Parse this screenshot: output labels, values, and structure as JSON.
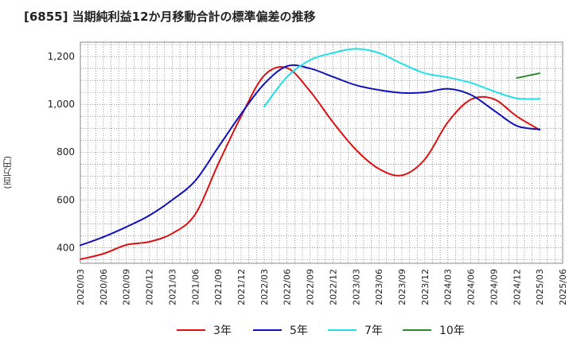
{
  "chart_data": {
    "type": "line",
    "title": "[6855]  当期純利益12か月移動合計の標準偏差の推移",
    "ylabel": "(百万円)",
    "xlabel": "",
    "ylim": [
      335,
      1260
    ],
    "yticks": [
      400,
      600,
      800,
      1000,
      1200
    ],
    "ytick_labels": [
      "400",
      "600",
      "800",
      "1,000",
      "1,200"
    ],
    "xticks": [
      "2020/03",
      "2020/06",
      "2020/09",
      "2020/12",
      "2021/03",
      "2021/06",
      "2021/09",
      "2021/12",
      "2022/03",
      "2022/06",
      "2022/09",
      "2022/12",
      "2023/03",
      "2023/06",
      "2023/09",
      "2023/12",
      "2024/03",
      "2024/06",
      "2024/09",
      "2024/12",
      "2025/03",
      "2025/06"
    ],
    "grid": true,
    "legend_position": "bottom",
    "series": [
      {
        "name": "3年",
        "color": "#dd1111",
        "points": [
          [
            "2020/03",
            352
          ],
          [
            "2020/06",
            375
          ],
          [
            "2020/09",
            412
          ],
          [
            "2020/12",
            425
          ],
          [
            "2021/03",
            460
          ],
          [
            "2021/06",
            540
          ],
          [
            "2021/09",
            750
          ],
          [
            "2021/12",
            950
          ],
          [
            "2022/03",
            1120
          ],
          [
            "2022/06",
            1152
          ],
          [
            "2022/09",
            1055
          ],
          [
            "2022/12",
            925
          ],
          [
            "2023/03",
            810
          ],
          [
            "2023/06",
            730
          ],
          [
            "2023/09",
            703
          ],
          [
            "2023/12",
            770
          ],
          [
            "2024/03",
            925
          ],
          [
            "2024/06",
            1020
          ],
          [
            "2024/09",
            1022
          ],
          [
            "2024/12",
            950
          ],
          [
            "2025/03",
            893
          ]
        ]
      },
      {
        "name": "5年",
        "color": "#1111bb",
        "points": [
          [
            "2020/03",
            410
          ],
          [
            "2020/06",
            445
          ],
          [
            "2020/09",
            487
          ],
          [
            "2020/12",
            535
          ],
          [
            "2021/03",
            600
          ],
          [
            "2021/06",
            680
          ],
          [
            "2021/09",
            820
          ],
          [
            "2021/12",
            960
          ],
          [
            "2022/03",
            1085
          ],
          [
            "2022/06",
            1160
          ],
          [
            "2022/09",
            1150
          ],
          [
            "2022/12",
            1115
          ],
          [
            "2023/03",
            1080
          ],
          [
            "2023/06",
            1060
          ],
          [
            "2023/09",
            1048
          ],
          [
            "2023/12",
            1050
          ],
          [
            "2024/03",
            1065
          ],
          [
            "2024/06",
            1040
          ],
          [
            "2024/09",
            975
          ],
          [
            "2024/12",
            910
          ],
          [
            "2025/03",
            895
          ]
        ]
      },
      {
        "name": "7年",
        "color": "#22e0e8",
        "points": [
          [
            "2022/03",
            990
          ],
          [
            "2022/06",
            1115
          ],
          [
            "2022/09",
            1185
          ],
          [
            "2022/12",
            1215
          ],
          [
            "2023/03",
            1232
          ],
          [
            "2023/06",
            1215
          ],
          [
            "2023/09",
            1170
          ],
          [
            "2023/12",
            1130
          ],
          [
            "2024/03",
            1113
          ],
          [
            "2024/06",
            1090
          ],
          [
            "2024/09",
            1055
          ],
          [
            "2024/12",
            1025
          ],
          [
            "2025/03",
            1023
          ]
        ]
      },
      {
        "name": "10年",
        "color": "#2a8a2a",
        "points": [
          [
            "2024/12",
            1110
          ],
          [
            "2025/03",
            1130
          ]
        ]
      }
    ]
  }
}
